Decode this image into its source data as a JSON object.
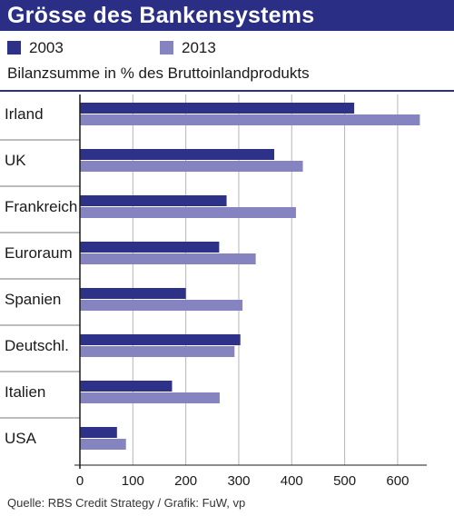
{
  "header": {
    "title": "Grösse des Bankensystems"
  },
  "subtitle": "Bilanzsumme in % des Bruttoinlandprodukts",
  "source": "Quelle: RBS Credit Strategy / Grafik: FuW, vp",
  "colors": {
    "title_bg": "#2a2e85",
    "series_2003": "#2e3188",
    "series_2013": "#8684c0",
    "grid": "#b5b5b5"
  },
  "chart_data": {
    "type": "bar",
    "orientation": "horizontal",
    "categories": [
      "Irland",
      "UK",
      "Frankreich",
      "Euroraum",
      "Spanien",
      "Deutschl.",
      "Italien",
      "USA"
    ],
    "series": [
      {
        "name": "2003",
        "values": [
          518,
          367,
          277,
          263,
          200,
          303,
          174,
          70
        ]
      },
      {
        "name": "2013",
        "values": [
          642,
          421,
          408,
          332,
          307,
          292,
          264,
          87
        ]
      }
    ],
    "xlim": [
      0,
      650
    ],
    "xticks": [
      0,
      100,
      200,
      300,
      400,
      500,
      600
    ],
    "grid": true,
    "legend_position": "top-left"
  }
}
